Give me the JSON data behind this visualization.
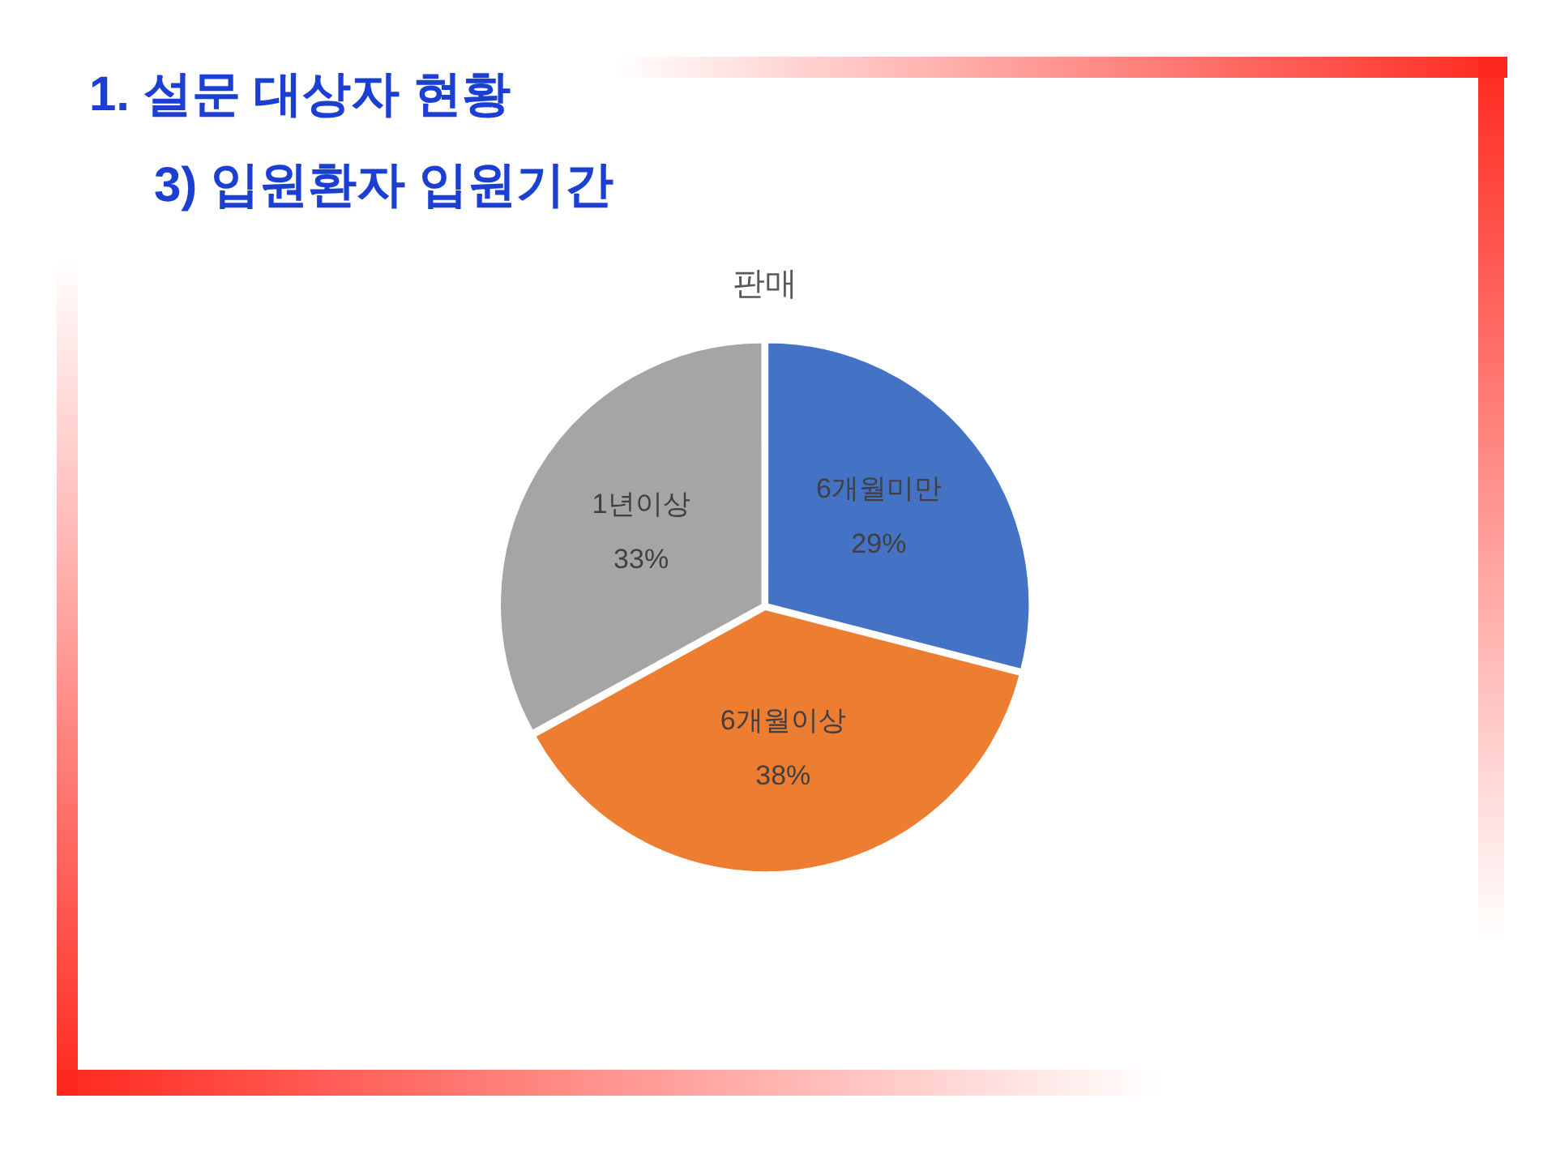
{
  "chart_data": {
    "type": "pie",
    "title": "1. 설문 대상자 현황",
    "subtitle": "3) 입원환자 입원기간",
    "annotations": [
      "판매"
    ],
    "categories": [
      "6개월미만",
      "6개월이상",
      "1년이상"
    ],
    "values": [
      29,
      38,
      33
    ],
    "value_labels": [
      "29%",
      "38%",
      "33%"
    ],
    "colors": [
      "#4472c4",
      "#ed7d31",
      "#a5a5a5"
    ]
  }
}
